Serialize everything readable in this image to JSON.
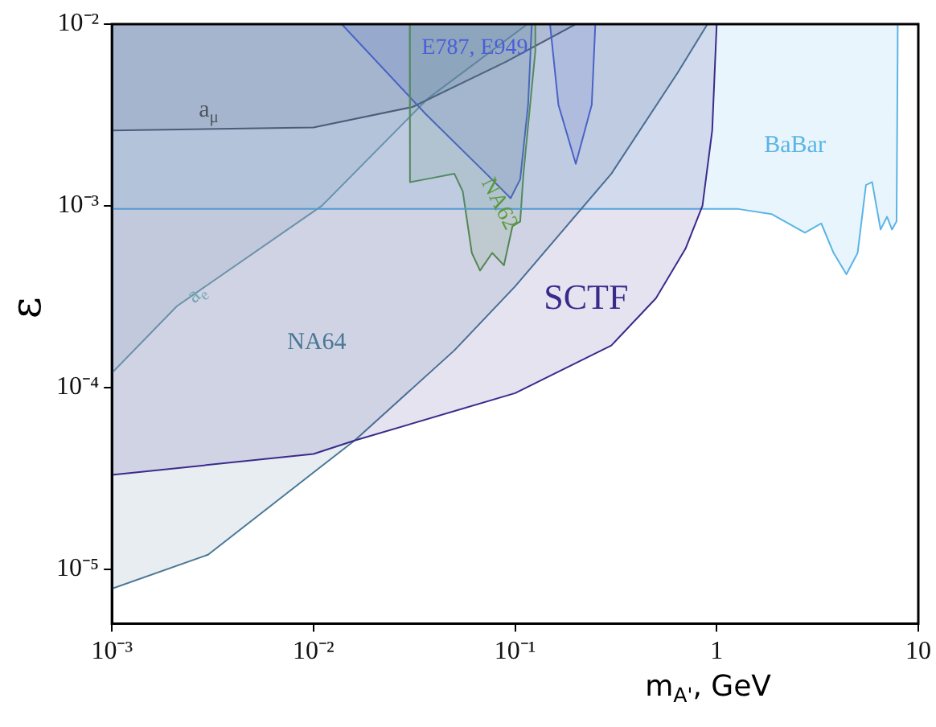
{
  "chart_data": {
    "type": "area",
    "xlabel": "m$_{A'}$, GeV",
    "ylabel": "ε",
    "log": "xy",
    "grid": false,
    "legend": false,
    "xlim": [
      0.001,
      10
    ],
    "ylim": [
      5e-06,
      0.01
    ],
    "xticks": [
      {
        "value": 0.001,
        "label": "10⁻³"
      },
      {
        "value": 0.01,
        "label": "10⁻²"
      },
      {
        "value": 0.1,
        "label": "10⁻¹"
      },
      1,
      10
    ],
    "yticks": [
      {
        "value": 1e-05,
        "label": "10⁻⁵"
      },
      {
        "value": 0.0001,
        "label": "10⁻⁴"
      },
      {
        "value": 0.001,
        "label": "10⁻³"
      },
      {
        "value": 0.01,
        "label": "10⁻²"
      }
    ],
    "series": [
      {
        "name": "SCTF",
        "color": "#3b2a8c",
        "x": [
          0.001,
          0.001,
          0.01,
          0.016,
          0.1,
          0.3,
          0.5,
          0.7,
          0.85,
          0.95,
          1
        ],
        "values": [
          0.01,
          3.3e-05,
          4.3e-05,
          5.1e-05,
          9.3e-05,
          0.00017,
          0.00031,
          0.00058,
          0.001,
          0.0026,
          0.01
        ]
      },
      {
        "name": "NA64",
        "color": "#4a7896",
        "x": [
          0.001,
          0.001,
          0.003,
          0.01,
          0.016,
          0.05,
          0.1,
          0.3,
          0.64,
          0.9
        ],
        "values": [
          0.01,
          7.8e-06,
          1.2e-05,
          3.4e-05,
          5.1e-05,
          0.00016,
          0.00036,
          0.0015,
          0.0054,
          0.01
        ]
      },
      {
        "name": "BaBar",
        "color": "#5ab4e6",
        "x": [
          0.001,
          0.001,
          1.28,
          1.87,
          2.74,
          3.3,
          3.8,
          4.4,
          5.0,
          5.5,
          5.9,
          6.5,
          7.0,
          7.4,
          7.8,
          7.9,
          7.9
        ],
        "values": [
          0.01,
          0.00096,
          0.00096,
          0.0009,
          0.00071,
          0.0008,
          0.00055,
          0.00042,
          0.00055,
          0.0013,
          0.00135,
          0.00074,
          0.00087,
          0.00074,
          0.00082,
          0.0075,
          0.01
        ]
      },
      {
        "name": "NA62",
        "color": "#5a9a3c",
        "x": [
          0.03,
          0.0301,
          0.036,
          0.05,
          0.055,
          0.061,
          0.067,
          0.077,
          0.088,
          0.097,
          0.106,
          0.11,
          0.126,
          0.126
        ],
        "values": [
          0.01,
          0.00135,
          0.0014,
          0.0015,
          0.0012,
          0.00055,
          0.00044,
          0.00055,
          0.00047,
          0.00077,
          0.00082,
          0.0015,
          0.0071,
          0.01
        ]
      },
      {
        "name": "E787, E949",
        "color": "#4a5ed8",
        "x": [
          0.0138,
          0.036,
          0.072,
          0.095,
          0.106,
          0.116,
          0.121,
          0.135,
          0.149,
          0.164,
          0.2,
          0.24,
          0.25
        ],
        "values": [
          0.01,
          0.0032,
          0.0015,
          0.0011,
          0.0014,
          0.0036,
          0.01,
          null,
          0.01,
          0.0036,
          0.0017,
          0.0036,
          0.01
        ]
      },
      {
        "name": "a$_{μ}$",
        "color": "#4d5660",
        "x": [
          0.001,
          0.001,
          0.01,
          0.031,
          0.09,
          0.2
        ],
        "values": [
          0.01,
          0.0026,
          0.0027,
          0.0035,
          0.0062,
          0.01
        ]
      },
      {
        "name": "a$_{e}$",
        "color": "#78a8b4",
        "x": [
          0.001,
          0.001,
          0.0021,
          0.011,
          0.037,
          0.115
        ],
        "values": [
          0.01,
          0.00012,
          0.00028,
          0.001,
          0.0039,
          0.01
        ]
      }
    ]
  }
}
